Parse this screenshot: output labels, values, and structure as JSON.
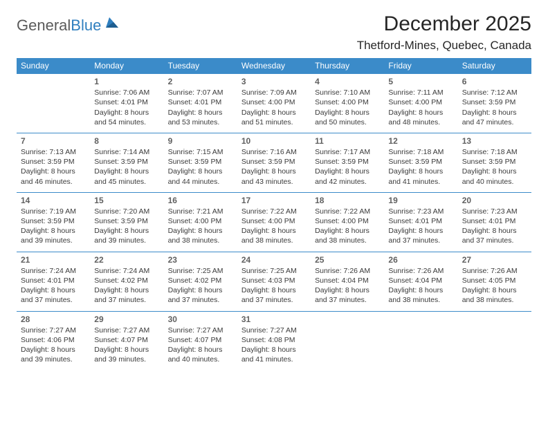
{
  "brand": {
    "text1": "General",
    "text2": "Blue",
    "icon_color": "#2f7fbf"
  },
  "header": {
    "title": "December 2025",
    "location": "Thetford-Mines, Quebec, Canada",
    "title_fontsize": 30,
    "location_fontsize": 17
  },
  "colors": {
    "header_bg": "#3b8bc9",
    "header_fg": "#ffffff",
    "cell_border": "#3b8bc9",
    "text": "#3a3a3a",
    "daynum": "#606060",
    "background": "#ffffff"
  },
  "weekdays": [
    "Sunday",
    "Monday",
    "Tuesday",
    "Wednesday",
    "Thursday",
    "Friday",
    "Saturday"
  ],
  "weeks": [
    [
      null,
      {
        "d": "1",
        "sr": "7:06 AM",
        "ss": "4:01 PM",
        "dl": "8 hours and 54 minutes."
      },
      {
        "d": "2",
        "sr": "7:07 AM",
        "ss": "4:01 PM",
        "dl": "8 hours and 53 minutes."
      },
      {
        "d": "3",
        "sr": "7:09 AM",
        "ss": "4:00 PM",
        "dl": "8 hours and 51 minutes."
      },
      {
        "d": "4",
        "sr": "7:10 AM",
        "ss": "4:00 PM",
        "dl": "8 hours and 50 minutes."
      },
      {
        "d": "5",
        "sr": "7:11 AM",
        "ss": "4:00 PM",
        "dl": "8 hours and 48 minutes."
      },
      {
        "d": "6",
        "sr": "7:12 AM",
        "ss": "3:59 PM",
        "dl": "8 hours and 47 minutes."
      }
    ],
    [
      {
        "d": "7",
        "sr": "7:13 AM",
        "ss": "3:59 PM",
        "dl": "8 hours and 46 minutes."
      },
      {
        "d": "8",
        "sr": "7:14 AM",
        "ss": "3:59 PM",
        "dl": "8 hours and 45 minutes."
      },
      {
        "d": "9",
        "sr": "7:15 AM",
        "ss": "3:59 PM",
        "dl": "8 hours and 44 minutes."
      },
      {
        "d": "10",
        "sr": "7:16 AM",
        "ss": "3:59 PM",
        "dl": "8 hours and 43 minutes."
      },
      {
        "d": "11",
        "sr": "7:17 AM",
        "ss": "3:59 PM",
        "dl": "8 hours and 42 minutes."
      },
      {
        "d": "12",
        "sr": "7:18 AM",
        "ss": "3:59 PM",
        "dl": "8 hours and 41 minutes."
      },
      {
        "d": "13",
        "sr": "7:18 AM",
        "ss": "3:59 PM",
        "dl": "8 hours and 40 minutes."
      }
    ],
    [
      {
        "d": "14",
        "sr": "7:19 AM",
        "ss": "3:59 PM",
        "dl": "8 hours and 39 minutes."
      },
      {
        "d": "15",
        "sr": "7:20 AM",
        "ss": "3:59 PM",
        "dl": "8 hours and 39 minutes."
      },
      {
        "d": "16",
        "sr": "7:21 AM",
        "ss": "4:00 PM",
        "dl": "8 hours and 38 minutes."
      },
      {
        "d": "17",
        "sr": "7:22 AM",
        "ss": "4:00 PM",
        "dl": "8 hours and 38 minutes."
      },
      {
        "d": "18",
        "sr": "7:22 AM",
        "ss": "4:00 PM",
        "dl": "8 hours and 38 minutes."
      },
      {
        "d": "19",
        "sr": "7:23 AM",
        "ss": "4:01 PM",
        "dl": "8 hours and 37 minutes."
      },
      {
        "d": "20",
        "sr": "7:23 AM",
        "ss": "4:01 PM",
        "dl": "8 hours and 37 minutes."
      }
    ],
    [
      {
        "d": "21",
        "sr": "7:24 AM",
        "ss": "4:01 PM",
        "dl": "8 hours and 37 minutes."
      },
      {
        "d": "22",
        "sr": "7:24 AM",
        "ss": "4:02 PM",
        "dl": "8 hours and 37 minutes."
      },
      {
        "d": "23",
        "sr": "7:25 AM",
        "ss": "4:02 PM",
        "dl": "8 hours and 37 minutes."
      },
      {
        "d": "24",
        "sr": "7:25 AM",
        "ss": "4:03 PM",
        "dl": "8 hours and 37 minutes."
      },
      {
        "d": "25",
        "sr": "7:26 AM",
        "ss": "4:04 PM",
        "dl": "8 hours and 37 minutes."
      },
      {
        "d": "26",
        "sr": "7:26 AM",
        "ss": "4:04 PM",
        "dl": "8 hours and 38 minutes."
      },
      {
        "d": "27",
        "sr": "7:26 AM",
        "ss": "4:05 PM",
        "dl": "8 hours and 38 minutes."
      }
    ],
    [
      {
        "d": "28",
        "sr": "7:27 AM",
        "ss": "4:06 PM",
        "dl": "8 hours and 39 minutes."
      },
      {
        "d": "29",
        "sr": "7:27 AM",
        "ss": "4:07 PM",
        "dl": "8 hours and 39 minutes."
      },
      {
        "d": "30",
        "sr": "7:27 AM",
        "ss": "4:07 PM",
        "dl": "8 hours and 40 minutes."
      },
      {
        "d": "31",
        "sr": "7:27 AM",
        "ss": "4:08 PM",
        "dl": "8 hours and 41 minutes."
      },
      null,
      null,
      null
    ]
  ],
  "labels": {
    "sunrise_prefix": "Sunrise: ",
    "sunset_prefix": "Sunset: ",
    "daylight_prefix": "Daylight: "
  }
}
